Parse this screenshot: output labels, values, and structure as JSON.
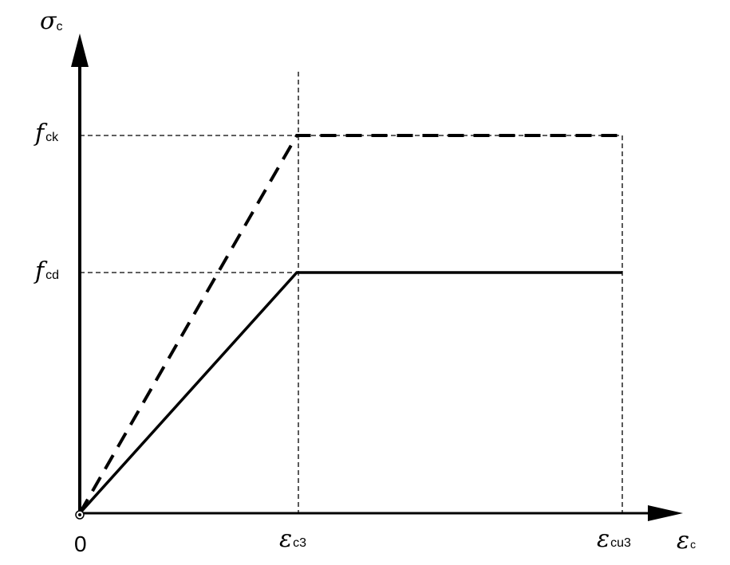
{
  "axes": {
    "y_symbol": "σ",
    "y_subscript": "c",
    "x_symbol": "ε",
    "x_subscript": "c",
    "origin_label": "0"
  },
  "levels": {
    "fck_symbol": "f",
    "fck_subscript": "ck",
    "fcd_symbol": "f",
    "fcd_subscript": "cd"
  },
  "strains": {
    "ec3_symbol": "ε",
    "ec3_subscript": "c3",
    "ecu3_symbol": "ε",
    "ecu3_subscript": "cu3"
  },
  "colors": {
    "ink": "#000000",
    "background": "#ffffff"
  }
}
